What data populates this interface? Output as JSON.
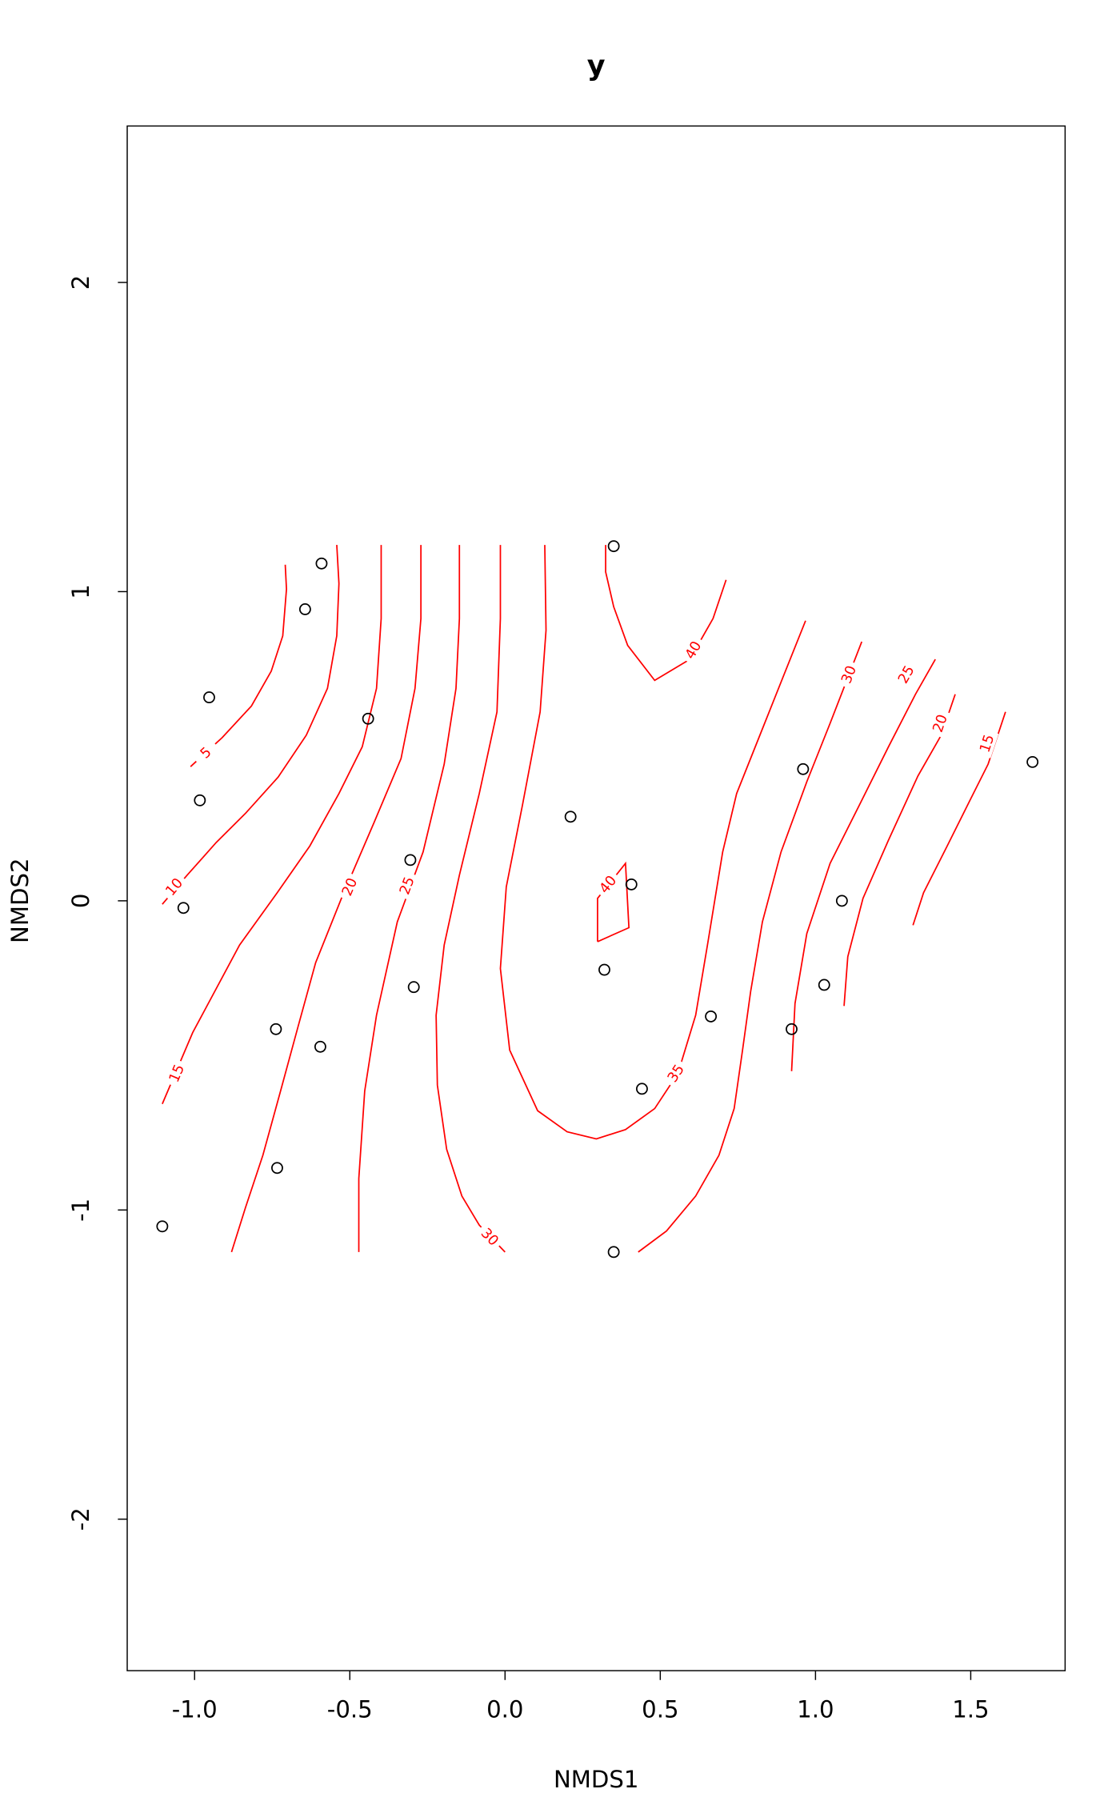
{
  "chart_data": {
    "type": "scatter",
    "title": "y",
    "xlabel": "NMDS1",
    "ylabel": "NMDS2",
    "xlim": [
      -1.217,
      1.804
    ],
    "ylim": [
      -2.49,
      2.506
    ],
    "xticks": [
      -1.0,
      -0.5,
      0.0,
      0.5,
      1.0,
      1.5
    ],
    "xtick_labels": [
      "-1.0",
      "-0.5",
      "0.0",
      "0.5",
      "1.0",
      "1.5"
    ],
    "yticks": [
      -2,
      -1,
      0,
      1,
      2
    ],
    "ytick_labels": [
      "-2",
      "-1",
      "0",
      "1",
      "2"
    ],
    "grid": false,
    "point_color": "#000000",
    "contour_color": "#ff0000",
    "points": [
      [
        0.35,
        1.147
      ],
      [
        -0.591,
        1.091
      ],
      [
        -0.644,
        0.943
      ],
      [
        -0.953,
        0.658
      ],
      [
        -0.441,
        0.589
      ],
      [
        -0.983,
        0.325
      ],
      [
        0.211,
        0.272
      ],
      [
        -0.305,
        0.132
      ],
      [
        0.407,
        0.053
      ],
      [
        -1.036,
        -0.023
      ],
      [
        0.32,
        -0.223
      ],
      [
        -0.294,
        -0.279
      ],
      [
        -0.738,
        -0.415
      ],
      [
        -0.595,
        -0.472
      ],
      [
        0.663,
        -0.374
      ],
      [
        0.441,
        -0.608
      ],
      [
        0.96,
        0.426
      ],
      [
        1.085,
        0.0
      ],
      [
        1.028,
        -0.272
      ],
      [
        0.923,
        -0.415
      ],
      [
        1.699,
        0.449
      ],
      [
        -0.734,
        -0.864
      ],
      [
        -1.104,
        -1.053
      ],
      [
        0.35,
        -1.136
      ]
    ],
    "contours": [
      {
        "level": "5",
        "label_at": [
          -0.964,
          0.479
        ],
        "path": [
          [
            -1.013,
            0.434
          ],
          [
            -0.911,
            0.528
          ],
          [
            -0.817,
            0.63
          ],
          [
            -0.753,
            0.743
          ],
          [
            -0.716,
            0.857
          ],
          [
            -0.704,
            1.008
          ],
          [
            -0.708,
            1.087
          ]
        ]
      },
      {
        "level": "10",
        "label_at": [
          -1.066,
          0.045
        ],
        "path": [
          [
            -1.104,
            -0.011
          ],
          [
            -1.024,
            0.083
          ],
          [
            -0.93,
            0.189
          ],
          [
            -0.836,
            0.283
          ],
          [
            -0.731,
            0.4
          ],
          [
            -0.64,
            0.536
          ],
          [
            -0.572,
            0.687
          ],
          [
            -0.542,
            0.857
          ],
          [
            -0.535,
            1.026
          ],
          [
            -0.542,
            1.151
          ]
        ]
      },
      {
        "level": "15",
        "label_at": [
          -1.058,
          -0.558
        ],
        "path": [
          [
            -1.104,
            -0.657
          ],
          [
            -1.006,
            -0.426
          ],
          [
            -0.855,
            -0.143
          ],
          [
            -0.734,
            0.026
          ],
          [
            -0.629,
            0.177
          ],
          [
            -0.535,
            0.347
          ],
          [
            -0.46,
            0.498
          ],
          [
            -0.414,
            0.687
          ],
          [
            -0.399,
            0.913
          ],
          [
            -0.399,
            1.151
          ]
        ]
      },
      {
        "level": "20",
        "label_at": [
          -0.501,
          0.045
        ],
        "path": [
          [
            -0.881,
            -1.136
          ],
          [
            -0.836,
            -0.992
          ],
          [
            -0.78,
            -0.823
          ],
          [
            -0.723,
            -0.615
          ],
          [
            -0.667,
            -0.408
          ],
          [
            -0.61,
            -0.2
          ],
          [
            -0.527,
            0.008
          ],
          [
            -0.422,
            0.253
          ],
          [
            -0.335,
            0.46
          ],
          [
            -0.29,
            0.687
          ],
          [
            -0.271,
            0.913
          ],
          [
            -0.271,
            1.151
          ]
        ]
      },
      {
        "level": "25",
        "label_at": [
          -0.316,
          0.049
        ],
        "path": [
          [
            -0.471,
            -1.136
          ],
          [
            -0.471,
            -0.898
          ],
          [
            -0.452,
            -0.615
          ],
          [
            -0.414,
            -0.37
          ],
          [
            -0.347,
            -0.068
          ],
          [
            -0.264,
            0.158
          ],
          [
            -0.196,
            0.442
          ],
          [
            -0.158,
            0.687
          ],
          [
            -0.147,
            0.913
          ],
          [
            -0.147,
            1.151
          ]
        ]
      },
      {
        "level": "30",
        "label_at": [
          -0.049,
          -1.087
        ],
        "path": [
          [
            0.0,
            -1.136
          ],
          [
            -0.083,
            -1.049
          ],
          [
            -0.139,
            -0.955
          ],
          [
            -0.188,
            -0.804
          ],
          [
            -0.218,
            -0.596
          ],
          [
            -0.222,
            -0.37
          ],
          [
            -0.196,
            -0.143
          ],
          [
            -0.147,
            0.083
          ],
          [
            -0.083,
            0.347
          ],
          [
            -0.026,
            0.611
          ],
          [
            -0.015,
            0.913
          ],
          [
            -0.015,
            1.151
          ]
        ]
      },
      {
        "level": "35",
        "label_at": [
          0.55,
          -0.558
        ],
        "path": [
          [
            0.128,
            1.151
          ],
          [
            0.132,
            0.875
          ],
          [
            0.113,
            0.611
          ],
          [
            0.056,
            0.309
          ],
          [
            0.004,
            0.045
          ],
          [
            -0.015,
            -0.219
          ],
          [
            0.015,
            -0.483
          ],
          [
            0.105,
            -0.679
          ],
          [
            0.2,
            -0.747
          ],
          [
            0.294,
            -0.77
          ],
          [
            0.388,
            -0.74
          ],
          [
            0.482,
            -0.672
          ],
          [
            0.557,
            -0.558
          ],
          [
            0.614,
            -0.37
          ],
          [
            0.652,
            -0.143
          ],
          [
            0.701,
            0.158
          ],
          [
            0.746,
            0.347
          ],
          [
            0.821,
            0.536
          ],
          [
            0.896,
            0.725
          ],
          [
            0.968,
            0.906
          ]
        ]
      },
      {
        "level": "30",
        "label_at": [
          1.107,
          0.732
        ],
        "path": [
          [
            0.429,
            -1.136
          ],
          [
            0.52,
            -1.068
          ],
          [
            0.614,
            -0.955
          ],
          [
            0.689,
            -0.823
          ],
          [
            0.738,
            -0.672
          ],
          [
            0.765,
            -0.483
          ],
          [
            0.791,
            -0.294
          ],
          [
            0.829,
            -0.068
          ],
          [
            0.889,
            0.158
          ],
          [
            0.972,
            0.385
          ],
          [
            1.047,
            0.574
          ],
          [
            1.149,
            0.838
          ]
        ]
      },
      {
        "level": "25",
        "label_at": [
          1.292,
          0.732
        ],
        "path": [
          [
            0.923,
            -0.551
          ],
          [
            0.934,
            -0.332
          ],
          [
            0.972,
            -0.106
          ],
          [
            1.047,
            0.121
          ],
          [
            1.141,
            0.309
          ],
          [
            1.235,
            0.498
          ],
          [
            1.322,
            0.668
          ],
          [
            1.386,
            0.781
          ]
        ]
      },
      {
        "level": "20",
        "label_at": [
          1.401,
          0.574
        ],
        "path": [
          [
            1.092,
            -0.34
          ],
          [
            1.104,
            -0.181
          ],
          [
            1.153,
            0.008
          ],
          [
            1.235,
            0.196
          ],
          [
            1.33,
            0.404
          ],
          [
            1.405,
            0.536
          ],
          [
            1.45,
            0.668
          ]
        ]
      },
      {
        "level": "15",
        "label_at": [
          1.552,
          0.509
        ],
        "path": [
          [
            1.314,
            -0.079
          ],
          [
            1.348,
            0.026
          ],
          [
            1.424,
            0.177
          ],
          [
            1.499,
            0.328
          ],
          [
            1.556,
            0.442
          ],
          [
            1.612,
            0.611
          ]
        ]
      },
      {
        "level": "40",
        "label_at": [
          0.606,
          0.811
        ],
        "path": [
          [
            0.324,
            1.151
          ],
          [
            0.324,
            1.064
          ],
          [
            0.35,
            0.951
          ],
          [
            0.395,
            0.826
          ],
          [
            0.482,
            0.713
          ],
          [
            0.595,
            0.781
          ],
          [
            0.67,
            0.913
          ],
          [
            0.712,
            1.038
          ]
        ]
      },
      {
        "level": "40",
        "label_at": [
          0.331,
          0.053
        ],
        "path": [
          [
            0.298,
            -0.132
          ],
          [
            0.298,
            0.008
          ],
          [
            0.388,
            0.121
          ],
          [
            0.399,
            -0.087
          ],
          [
            0.298,
            -0.132
          ]
        ]
      }
    ]
  }
}
